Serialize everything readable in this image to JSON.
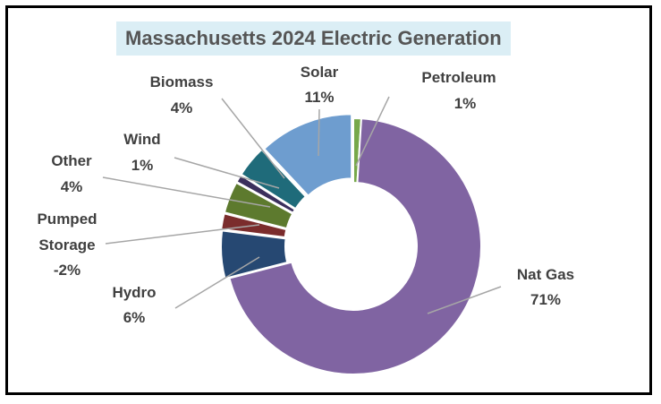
{
  "chart_data": {
    "type": "pie",
    "title": "Massachusetts 2024 Electric Generation",
    "slices": [
      {
        "name": "Petroleum",
        "value": 1,
        "label": "1%",
        "color": "#77a84a"
      },
      {
        "name": "Nat Gas",
        "value": 71,
        "label": "71%",
        "color": "#8064a2"
      },
      {
        "name": "Hydro",
        "value": 6,
        "label": "6%",
        "color": "#264872"
      },
      {
        "name": "Pumped Storage",
        "value": -2,
        "label": "-2%",
        "color": "#7b2c2c"
      },
      {
        "name": "Other",
        "value": 4,
        "label": "4%",
        "color": "#5d7a2e"
      },
      {
        "name": "Wind",
        "value": 1,
        "label": "1%",
        "color": "#3b2f5c"
      },
      {
        "name": "Biomass",
        "value": 4,
        "label": "4%",
        "color": "#1f6b7a"
      },
      {
        "name": "Solar",
        "value": 11,
        "label": "11%",
        "color": "#6e9dcf"
      }
    ],
    "hole": "donut",
    "leader_line_color": "#a6a6a6",
    "label_color": "#404040",
    "title_background": "#dbeef5"
  }
}
